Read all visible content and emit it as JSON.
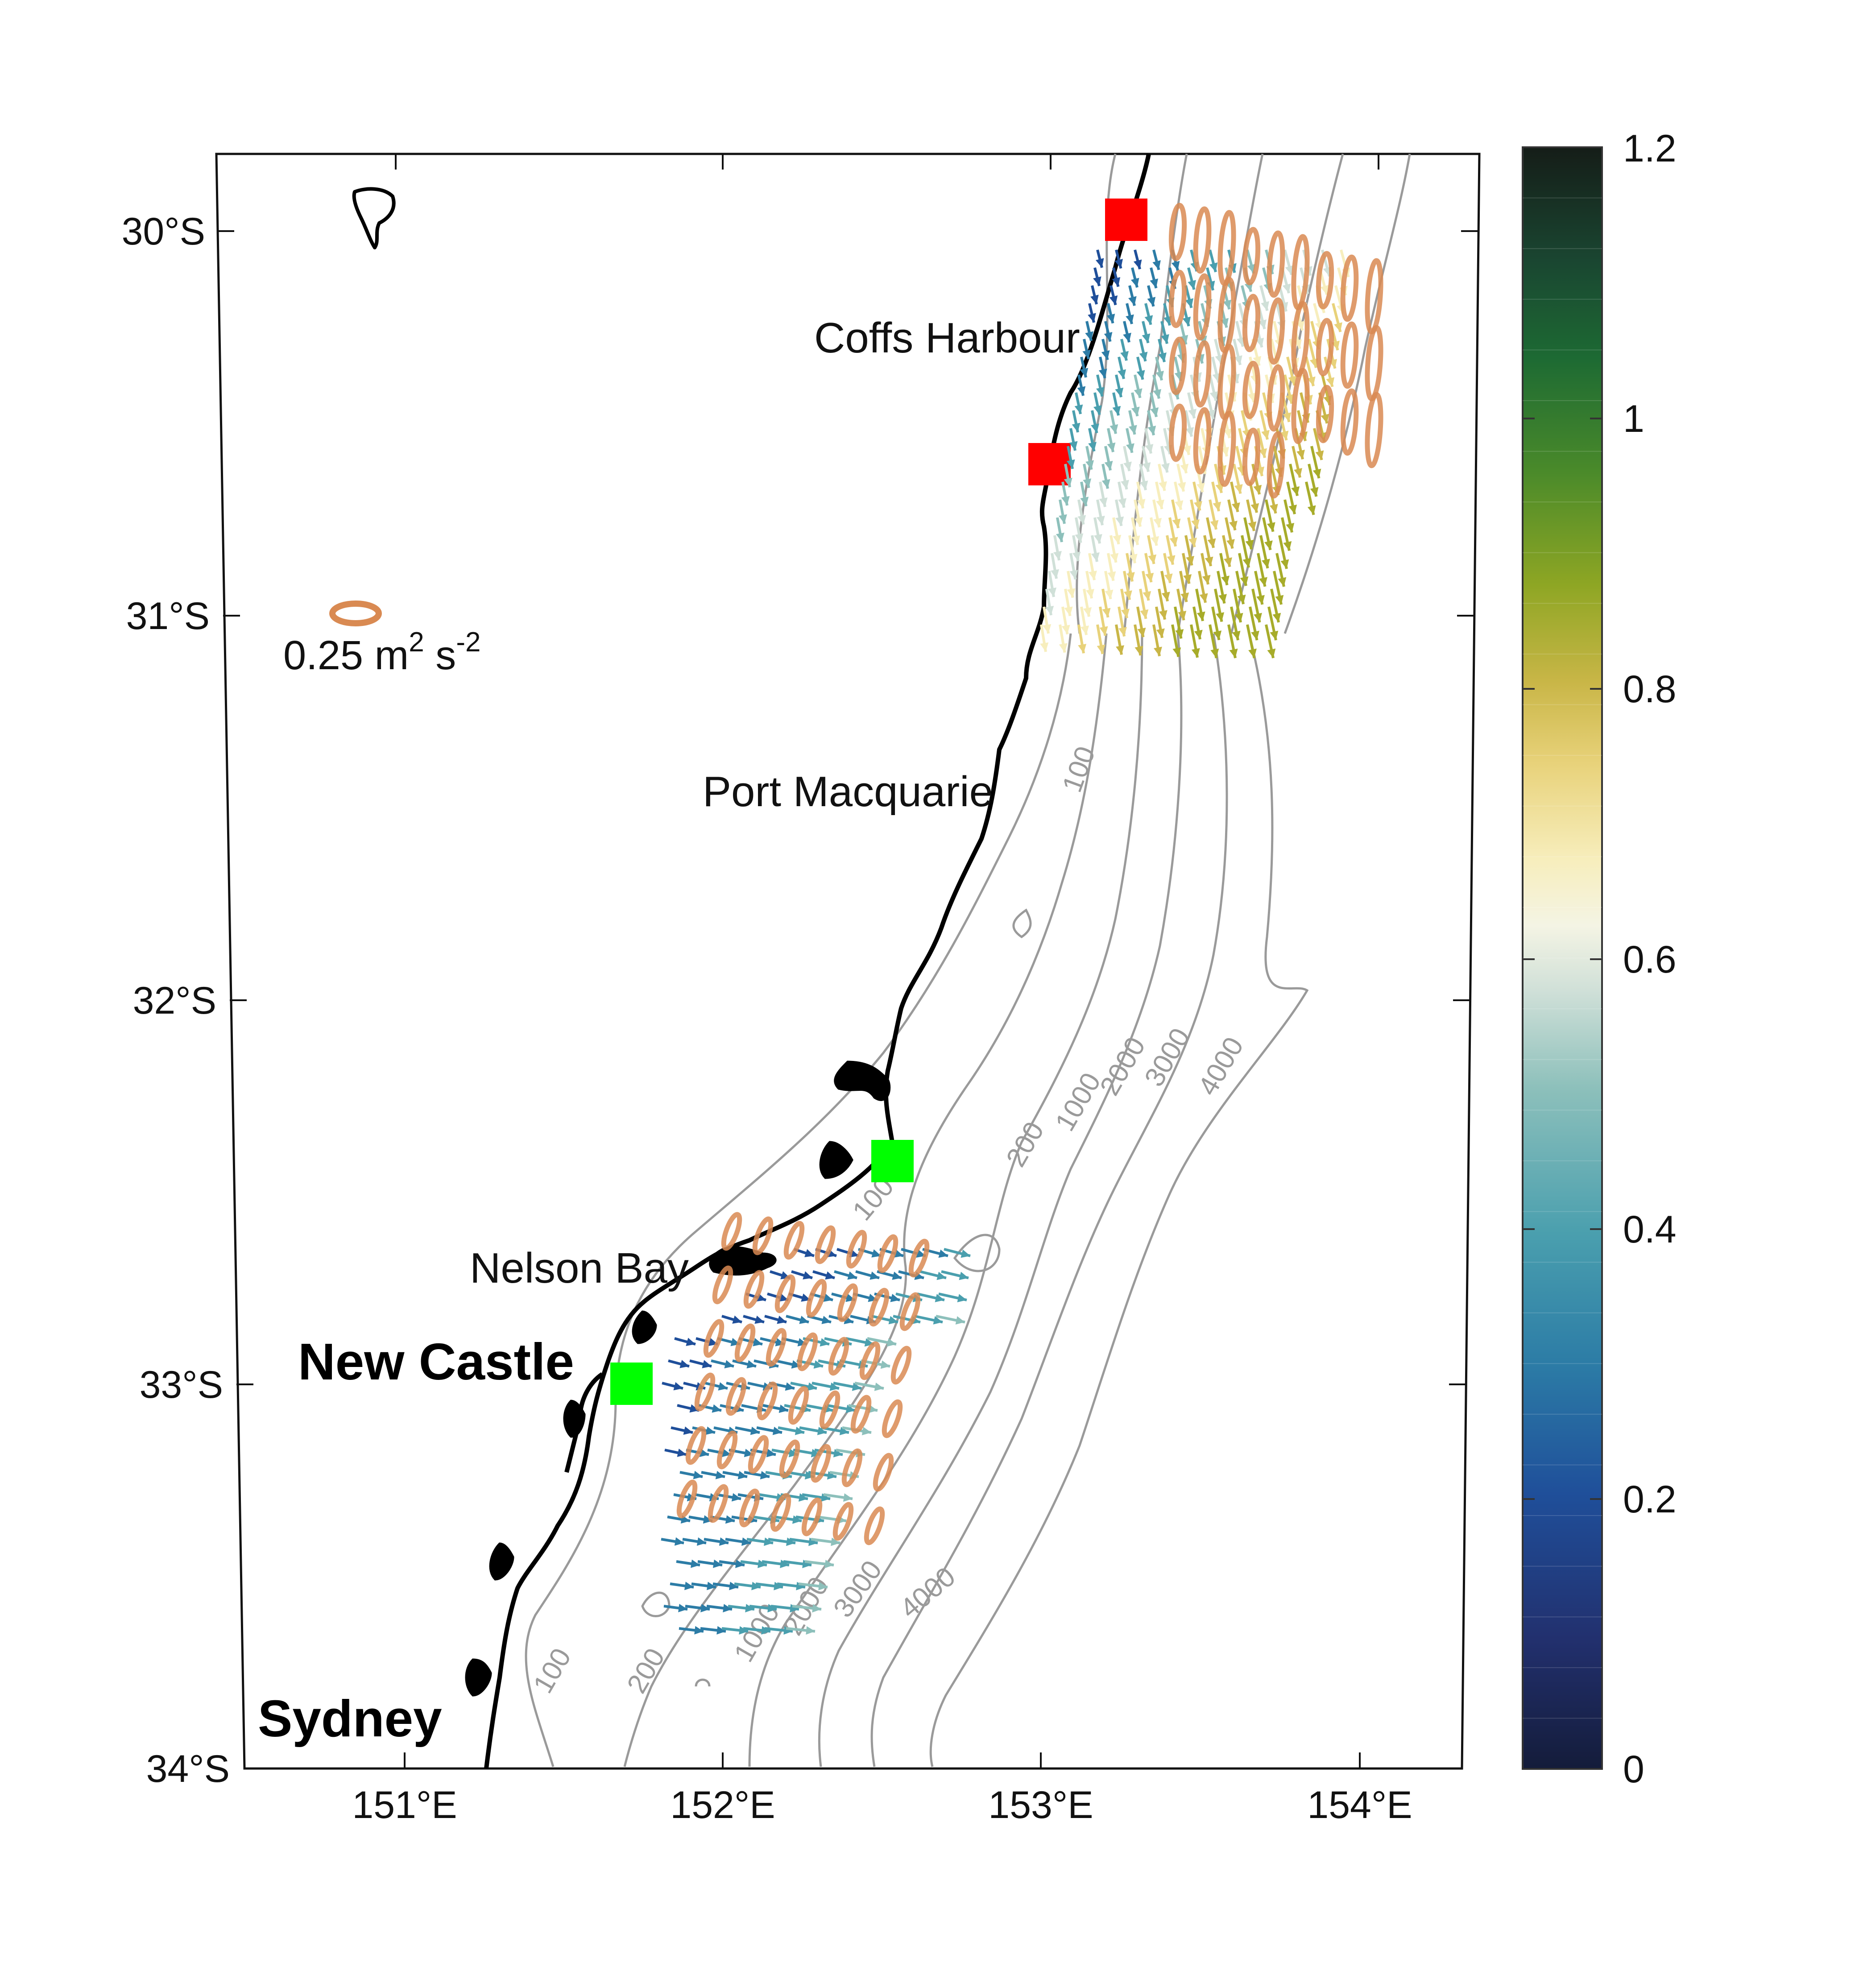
{
  "axes": {
    "lat_ticks": [
      "30°S",
      "31°S",
      "32°S",
      "33°S",
      "34°S"
    ],
    "lon_ticks": [
      "151°E",
      "152°E",
      "153°E",
      "154°E"
    ]
  },
  "places": {
    "coffs": "Coffs Harbour",
    "portmac": "Port Macquarie",
    "nelson": "Nelson Bay",
    "newcastle": "New Castle",
    "sydney": "Sydney"
  },
  "legend": {
    "value": "0.25 m",
    "sup1": "2",
    "mid": " s",
    "sup2": "-2",
    "ellipse_color": "#d98a52"
  },
  "colorbar": {
    "labels": [
      "1.2",
      "1",
      "0.8",
      "0.6",
      "0.4",
      "0.2",
      "0"
    ],
    "min": 0,
    "max": 1.2
  },
  "contour_labels": {
    "c100_north": "100",
    "c100_south": "100",
    "c200_mid": "200",
    "c1000_mid": "1000",
    "c2000_mid": "2000",
    "c3000_mid": "3000",
    "c4000_mid": "4000",
    "c200_south": "200",
    "c1000_south": "1000",
    "c2000_south": "2000",
    "c3000_south": "3000",
    "c4000_south": "4000",
    "c100_nelson": "100"
  },
  "markers": {
    "red_color": "#ff0000",
    "green_color": "#00ff00"
  }
}
